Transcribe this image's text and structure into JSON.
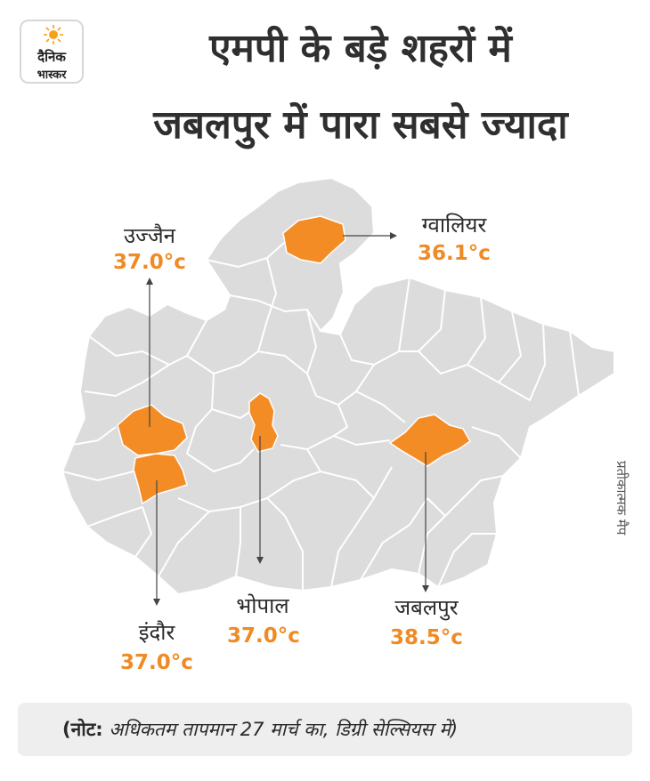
{
  "logo": {
    "line1": "दैनिक",
    "line2": "भास्कर",
    "icon": "sun-icon",
    "color": "#f7a21b"
  },
  "title": {
    "line1": "एमपी के बड़े शहरों में",
    "line2": "जबलपुर में पारा सबसे ज्यादा"
  },
  "colors": {
    "highlight": "#f48c26",
    "district": "#dcdcdc",
    "border": "#ffffff",
    "temp_text": "#f08a24"
  },
  "cities": [
    {
      "name": "उज्जैन",
      "temp": "37.0°c"
    },
    {
      "name": "ग्वालियर",
      "temp": "36.1°c"
    },
    {
      "name": "इंदौर",
      "temp": "37.0°c"
    },
    {
      "name": "भोपाल",
      "temp": "37.0°c"
    },
    {
      "name": "जबलपुर",
      "temp": "38.5°c"
    }
  ],
  "side_note": "प्रतीकात्मक मैप",
  "note": {
    "prefix": "(नोट:",
    "text": "अधिकतम तापमान 27 मार्च का, डिग्री सेल्सियस में)"
  }
}
